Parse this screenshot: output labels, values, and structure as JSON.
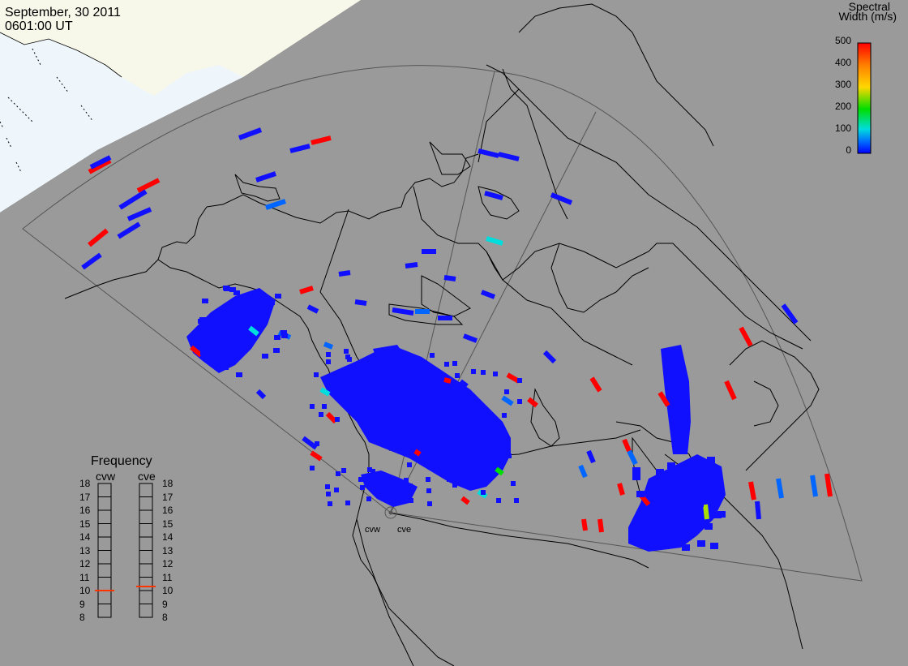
{
  "header": {
    "date": "September, 30 2011",
    "time": "0601:00 UT"
  },
  "colorbar": {
    "title_line1": "Spectral",
    "title_line2": "Width (m/s)",
    "ticks": [
      "500",
      "400",
      "300",
      "200",
      "100",
      "0"
    ],
    "colors": [
      "#ff0000",
      "#ff7f00",
      "#ffd700",
      "#00dd00",
      "#00dddd",
      "#0066ff",
      "#0000ff"
    ]
  },
  "frequency_panel": {
    "title": "Frequency",
    "radars": [
      "cvw",
      "cve"
    ],
    "scale": [
      "18",
      "17",
      "16",
      "15",
      "14",
      "13",
      "12",
      "11",
      "10",
      "9",
      "8"
    ],
    "cvw_value": 10.5,
    "cve_value": 10.8
  },
  "radars": {
    "west_label": "cvw",
    "east_label": "cve"
  },
  "colors": {
    "background": "#9a9a9a",
    "night_land": "#f7f7e8",
    "night_sea": "#eef6fb",
    "coastline": "#000000",
    "fov_line": "#555555",
    "echo_low": "#1010ff"
  }
}
